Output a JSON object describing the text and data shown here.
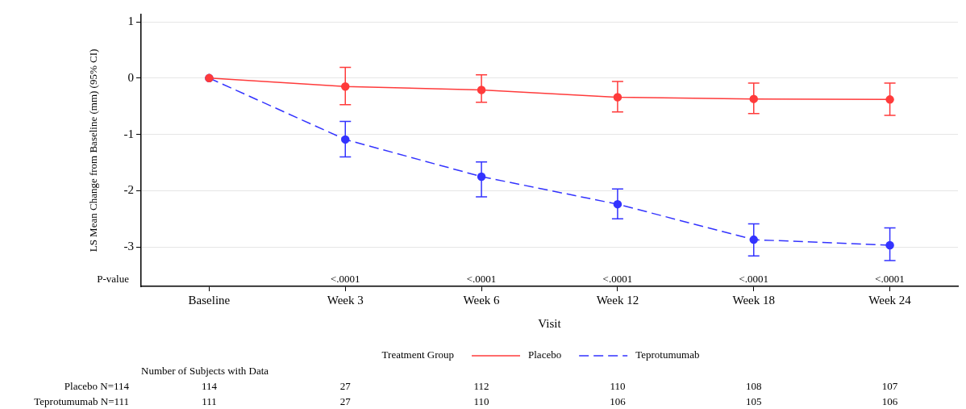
{
  "chart_data": {
    "type": "line",
    "xlabel": "Visit",
    "ylabel": "LS Mean Change from Baseline (mm) (95% CI)",
    "legend_title": "Treatment Group",
    "legend": "bottom",
    "grid": "y",
    "marker": "circle",
    "categories": [
      "Baseline",
      "Week 3",
      "Week 6",
      "Week 12",
      "Week 18",
      "Week 24"
    ],
    "ylim": [
      -3.7,
      1.13
    ],
    "yticks": [
      -3,
      -2,
      -1,
      0,
      1
    ],
    "series": [
      {
        "name": "Placebo",
        "color": "#ff3b3b",
        "line_style": "solid",
        "values": [
          0,
          -0.15,
          -0.21,
          -0.34,
          -0.37,
          -0.38
        ],
        "errors": [
          null,
          [
            -0.47,
            0.19
          ],
          [
            -0.43,
            0.06
          ],
          [
            -0.6,
            -0.06
          ],
          [
            -0.63,
            -0.09
          ],
          [
            -0.66,
            -0.09
          ]
        ]
      },
      {
        "name": "Teprotumumab",
        "color": "#3333ff",
        "line_style": "dashed",
        "values": [
          0,
          -1.09,
          -1.75,
          -2.24,
          -2.87,
          -2.97
        ],
        "errors": [
          null,
          [
            -1.4,
            -0.77
          ],
          [
            -2.11,
            -1.49
          ],
          [
            -2.5,
            -1.97
          ],
          [
            -3.16,
            -2.59
          ],
          [
            -3.24,
            -2.66
          ]
        ]
      }
    ],
    "annotations": [
      "P-value",
      "<.0001",
      "<.0001",
      "<.0001",
      "<.0001",
      "<.0001",
      "Number of Subjects with Data",
      "Placebo N=114",
      "114",
      "27",
      "112",
      "110",
      "108",
      "107",
      "Teprotumumab N=111",
      "111",
      "27",
      "110",
      "106",
      "105",
      "106"
    ]
  }
}
